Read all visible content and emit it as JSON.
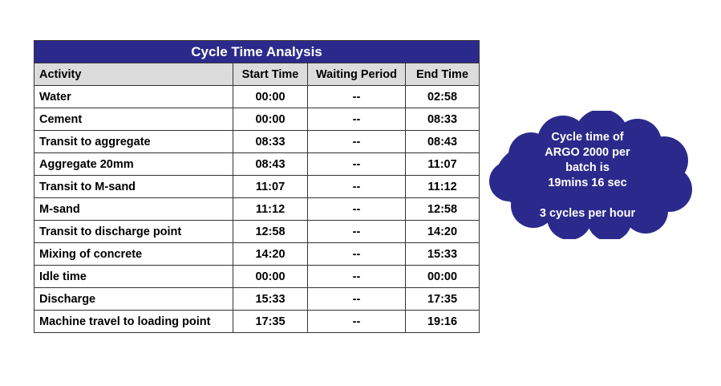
{
  "table": {
    "title": "Cycle Time Analysis",
    "headers": {
      "activity": "Activity",
      "start": "Start Time",
      "waiting": "Waiting Period",
      "end": "End Time"
    },
    "rows": [
      {
        "activity": "Water",
        "start": "00:00",
        "waiting": "--",
        "end": "02:58"
      },
      {
        "activity": "Cement",
        "start": "00:00",
        "waiting": "--",
        "end": "08:33"
      },
      {
        "activity": "Transit to aggregate",
        "start": "08:33",
        "waiting": "--",
        "end": "08:43"
      },
      {
        "activity": "Aggregate 20mm",
        "start": "08:43",
        "waiting": "--",
        "end": "11:07"
      },
      {
        "activity": "Transit to M-sand",
        "start": "11:07",
        "waiting": "--",
        "end": "11:12"
      },
      {
        "activity": "M-sand",
        "start": "11:12",
        "waiting": "--",
        "end": "12:58"
      },
      {
        "activity": "Transit to discharge point",
        "start": "12:58",
        "waiting": "--",
        "end": "14:20"
      },
      {
        "activity": "Mixing of concrete",
        "start": "14:20",
        "waiting": "--",
        "end": "15:33"
      },
      {
        "activity": "Idle time",
        "start": "00:00",
        "waiting": "--",
        "end": "00:00"
      },
      {
        "activity": "Discharge",
        "start": "15:33",
        "waiting": "--",
        "end": "17:35"
      },
      {
        "activity": "Machine travel to loading point",
        "start": "17:35",
        "waiting": "--",
        "end": "19:16"
      }
    ]
  },
  "callout": {
    "line1": "Cycle time of",
    "line2": "ARGO 2000 per",
    "line3": "batch is",
    "line4": "19mins 16 sec",
    "line5": "3 cycles per hour"
  },
  "colors": {
    "title_bg": "#2b2a8c",
    "header_bg": "#dcdcdc",
    "cloud_fill": "#2b2a8c"
  }
}
